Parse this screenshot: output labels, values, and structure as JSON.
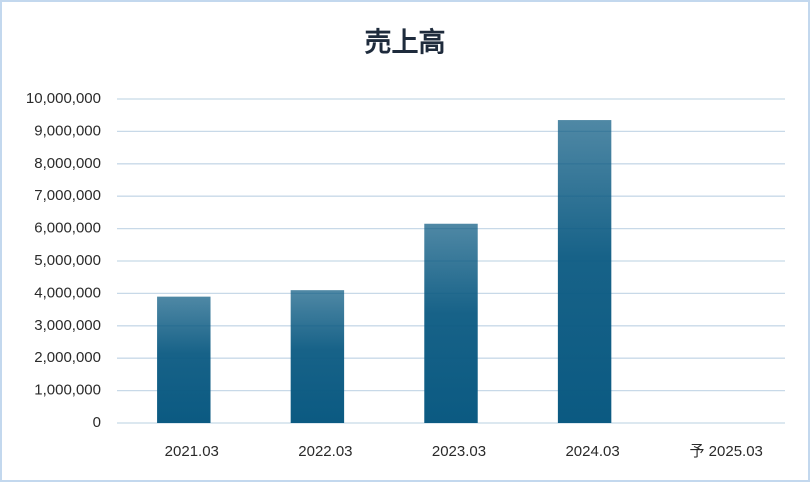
{
  "chart_data": {
    "type": "bar",
    "title": "売上高",
    "categories": [
      "2021.03",
      "2022.03",
      "2023.03",
      "2024.03",
      "予 2025.03"
    ],
    "values": [
      3900000,
      4100000,
      6150000,
      9350000,
      null
    ],
    "color": "#0b5a82",
    "ylim": [
      0,
      10000000
    ],
    "yticks": [
      0,
      {
        "value": 1000000,
        "label": "1,000,000"
      },
      {
        "value": 2000000,
        "label": "2,000,000"
      },
      {
        "value": 3000000,
        "label": "3,000,000"
      },
      {
        "value": 4000000,
        "label": "4,000,000"
      },
      {
        "value": 5000000,
        "label": "5,000,000"
      },
      {
        "value": 6000000,
        "label": "6,000,000"
      },
      {
        "value": 7000000,
        "label": "7,000,000"
      },
      {
        "value": 8000000,
        "label": "8,000,000"
      },
      {
        "value": 9000000,
        "label": "9,000,000"
      },
      {
        "value": 10000000,
        "label": "10,000,000"
      }
    ],
    "grid": true
  }
}
